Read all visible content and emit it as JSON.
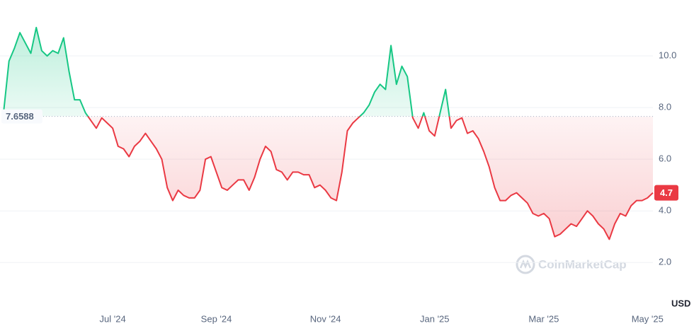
{
  "chart_data": {
    "type": "line",
    "categories": [
      null,
      null,
      null,
      null,
      null,
      null,
      null,
      null,
      null,
      null,
      null,
      null,
      null,
      null,
      null,
      null,
      null,
      null,
      null,
      null,
      "Jul '24",
      null,
      null,
      null,
      null,
      null,
      null,
      null,
      null,
      null,
      null,
      null,
      null,
      null,
      null,
      null,
      null,
      null,
      null,
      "Sep '24",
      null,
      null,
      null,
      null,
      null,
      null,
      null,
      null,
      null,
      null,
      null,
      null,
      null,
      null,
      null,
      null,
      null,
      null,
      null,
      "Nov '24",
      null,
      null,
      null,
      null,
      null,
      null,
      null,
      null,
      null,
      null,
      null,
      null,
      null,
      null,
      null,
      null,
      null,
      null,
      null,
      "Jan '25",
      null,
      null,
      null,
      null,
      null,
      null,
      null,
      null,
      null,
      null,
      null,
      null,
      null,
      null,
      null,
      null,
      null,
      null,
      null,
      "Mar '25",
      null,
      null,
      null,
      null,
      null,
      null,
      null,
      null,
      null,
      null,
      null,
      null,
      null,
      null,
      null,
      null,
      null,
      null,
      "May '25",
      null
    ],
    "series": [
      {
        "values": [
          7.8,
          9.8,
          10.3,
          10.9,
          10.5,
          10.1,
          11.1,
          10.2,
          10.0,
          10.2,
          10.1,
          10.7,
          9.4,
          8.3,
          8.3,
          7.8,
          7.5,
          7.2,
          7.6,
          7.4,
          7.2,
          6.5,
          6.4,
          6.1,
          6.5,
          6.7,
          7.0,
          6.7,
          6.4,
          6.0,
          4.9,
          4.4,
          4.8,
          4.6,
          4.5,
          4.5,
          4.8,
          6.0,
          6.1,
          5.5,
          4.9,
          4.8,
          5.0,
          5.2,
          5.2,
          4.8,
          5.3,
          6.0,
          6.5,
          6.3,
          5.6,
          5.5,
          5.2,
          5.5,
          5.5,
          5.4,
          5.4,
          4.9,
          5.0,
          4.8,
          4.5,
          4.4,
          5.5,
          7.1,
          7.4,
          7.6,
          7.8,
          8.1,
          8.6,
          8.9,
          8.7,
          10.4,
          8.9,
          9.6,
          9.2,
          7.6,
          7.2,
          7.8,
          7.1,
          6.9,
          7.8,
          8.7,
          7.2,
          7.5,
          7.6,
          7.0,
          7.1,
          6.8,
          6.3,
          5.7,
          4.9,
          4.4,
          4.4,
          4.6,
          4.7,
          4.5,
          4.3,
          3.9,
          3.8,
          3.9,
          3.7,
          3.0,
          3.1,
          3.3,
          3.5,
          3.4,
          3.7,
          4.0,
          3.8,
          3.5,
          3.3,
          2.9,
          3.5,
          3.9,
          3.8,
          4.2,
          4.4,
          4.4,
          4.5,
          4.7
        ]
      }
    ],
    "baseline": 7.6588,
    "up_color": "#16c784",
    "down_color": "#ea3943",
    "ylim": [
      0.2,
      12.0
    ],
    "yticks": [
      {
        "value": 2,
        "label": "2.0"
      },
      {
        "value": 4,
        "label": "4.0"
      },
      {
        "value": 6,
        "label": "6.0"
      },
      {
        "value": 8,
        "label": "8.0"
      },
      {
        "value": 10,
        "label": "10.0"
      }
    ],
    "grid": true,
    "y_axis_label": "USD",
    "watermark": "CoinMarketCap"
  }
}
